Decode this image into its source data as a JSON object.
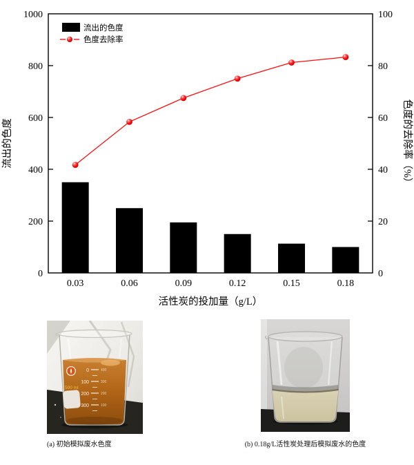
{
  "chart_data": {
    "type": "bar",
    "subtype": "bar+line dual-axis",
    "title": "",
    "categories": [
      "0.03",
      "0.06",
      "0.09",
      "0.12",
      "0.15",
      "0.18"
    ],
    "series": [
      {
        "name": "流出的色度",
        "type": "bar",
        "axis": "left",
        "color": "#000000",
        "values": [
          350,
          250,
          195,
          150,
          113,
          100
        ]
      },
      {
        "name": "色度去除率",
        "type": "line",
        "axis": "right",
        "color": "#fb0f0f",
        "values": [
          41.7,
          58.3,
          67.5,
          75.0,
          81.2,
          83.3
        ]
      }
    ],
    "xlabel": "活性炭的投加量（g/L）",
    "y_left": {
      "label": "流出的色度",
      "min": 0,
      "max": 1000,
      "ticks": [
        0,
        200,
        400,
        600,
        800,
        1000
      ]
    },
    "y_right": {
      "label": "色度的去除率（%）",
      "min": 0,
      "max": 100,
      "ticks": [
        0,
        20,
        40,
        60,
        80,
        100
      ]
    },
    "legend": {
      "position": "top-left",
      "items": [
        "流出的色度",
        "色度去除率"
      ]
    },
    "grid": false,
    "frame": "full-box, ticks inward"
  },
  "photos": {
    "a": {
      "caption": "(a) 初始模拟废水色度",
      "volume_label": "500 ml",
      "grad_left": [
        "0",
        "100",
        "200",
        "300"
      ],
      "grad_right": [
        "400",
        "300",
        "200",
        "100"
      ],
      "liquid_color": "#b06416"
    },
    "b": {
      "caption": "(b) 0.18g/L活性炭处理后模拟废水的色度",
      "liquid_color": "#d3cbaa"
    }
  }
}
